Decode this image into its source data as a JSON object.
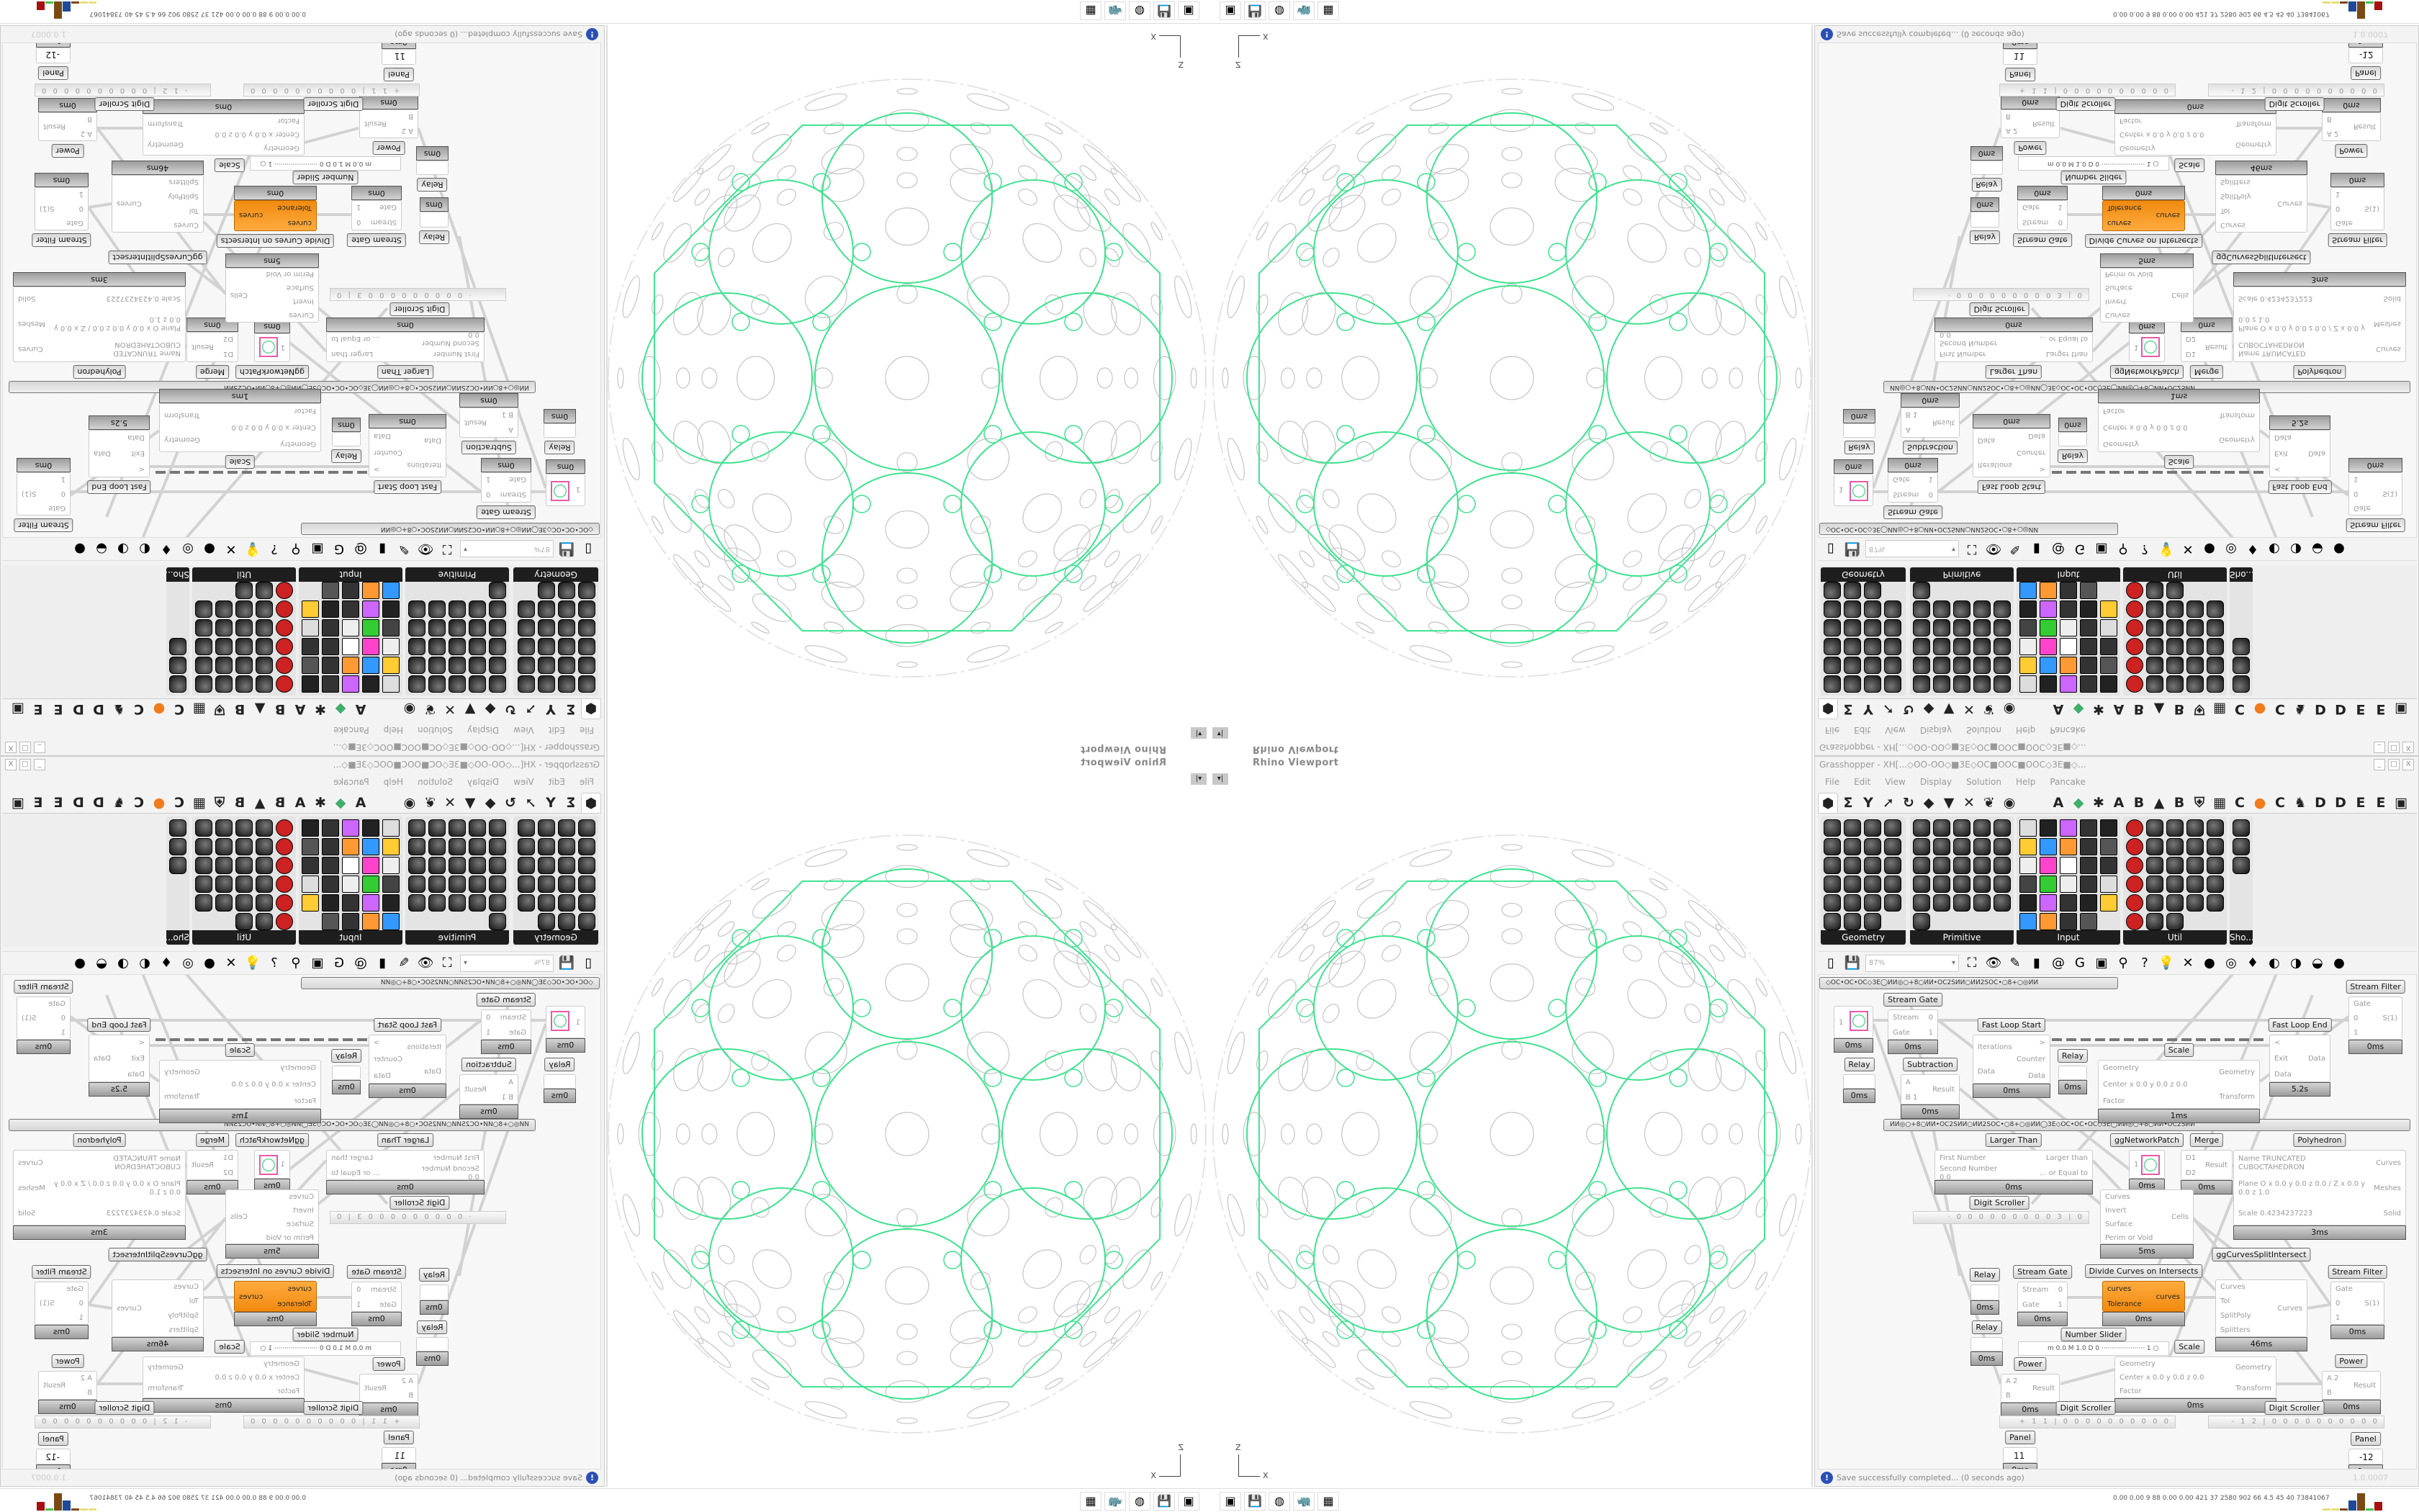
{
  "viewport": {
    "title": "Rhino Viewport",
    "dropdown_icon": "▾|",
    "axis_z": "Z",
    "axis_x": "X"
  },
  "grasshopper": {
    "title": "Grasshopper - XH[...◇OO-OO◇■3E◇OC■OOC■OOC◇3E■◇...",
    "window_buttons": [
      "_",
      "□",
      "X"
    ],
    "menu": [
      "File",
      "Edit",
      "View",
      "Display",
      "Solution",
      "Help",
      "Pancake"
    ],
    "tab_icons": [
      "⬢",
      "Σ",
      "Y",
      "➚",
      "↻",
      "◆",
      "▼",
      "✕",
      "❦",
      "◉"
    ],
    "tab_letters": [
      "A",
      "◆",
      "✱",
      "A",
      "B",
      "▲",
      "B",
      "⛨",
      "▦",
      "C",
      "●",
      "C",
      "♞",
      "D",
      "D",
      "E",
      "E",
      "▣"
    ],
    "panels": [
      {
        "label": "Geometry",
        "icon_count": 23
      },
      {
        "label": "Primitive",
        "icon_count": 26
      },
      {
        "label": "Input",
        "icon_count": 29
      },
      {
        "label": "Util",
        "icon_count": 28
      },
      {
        "label": "Sho...",
        "icon_count": 3
      }
    ],
    "zoom": "87%",
    "toolbar_icons": [
      "▯",
      "💾",
      "⛶",
      "👁",
      "✎",
      "▮",
      "@",
      "G",
      "▣",
      "⚲",
      "?",
      "💡",
      "✕",
      "●",
      "◎",
      "♦",
      "◐",
      "◑",
      "◒",
      "●"
    ],
    "status": "Save successfully completed... (0 seconds ago)",
    "version": "1.0.0007"
  },
  "canvas": {
    "group_bars": [
      "◇OC•OC•OC◇3E◯ИИ◎○+8○ИИ•OC2SИИ○ИИ2SOC•○8+○◎ИИ",
      "ИИ◎○+8○ИИ•OC2SИИ○ИИ2SOC•○8+○◎ИИ◯3E◇OC•OC•OC◇3E◯ИИ◎○+8○ИИ•OC2SИИ"
    ],
    "nodes": [
      {
        "id": "swatch1",
        "label": "",
        "inputs": [
          "1"
        ],
        "outputs": [],
        "time": "0ms"
      },
      {
        "id": "streamgate1",
        "label": "Stream Gate",
        "inputs": [
          "Stream",
          "Gate"
        ],
        "outputs": [
          "0",
          "1"
        ],
        "time": "0ms"
      },
      {
        "id": "relay1",
        "label": "Relay",
        "inputs": [],
        "outputs": [],
        "time": "0ms"
      },
      {
        "id": "subtraction",
        "label": "Subtraction",
        "inputs": [
          "A",
          "B 1"
        ],
        "outputs": [
          "Result"
        ],
        "time": "0ms"
      },
      {
        "id": "fastloopstart",
        "label": "Fast Loop Start",
        "inputs": [
          "Iterations",
          "Data"
        ],
        "outputs": [
          ">",
          "Counter",
          "Data"
        ],
        "time": "0ms"
      },
      {
        "id": "relay2",
        "label": "Relay",
        "inputs": [],
        "outputs": [],
        "time": "0ms"
      },
      {
        "id": "scale1",
        "label": "Scale",
        "inputs": [
          "Geometry",
          "Center x 0.0 y 0.0 z 0.0",
          "Factor"
        ],
        "outputs": [
          "Geometry",
          "Transform"
        ],
        "time": "1ms"
      },
      {
        "id": "fastloopend",
        "label": "Fast Loop End",
        "inputs": [
          "<",
          "Exit",
          "Data"
        ],
        "outputs": [
          "Data"
        ],
        "time": "5.2s"
      },
      {
        "id": "streamfilter1",
        "label": "Stream Filter",
        "inputs": [
          "Gate",
          "0",
          "1"
        ],
        "outputs": [
          "S(1)"
        ],
        "time": "0ms"
      },
      {
        "id": "largerthan",
        "label": "Larger Than",
        "inputs": [
          "First Number",
          "Second Number 0.0"
        ],
        "outputs": [
          "Larger than",
          "... or Equal to"
        ],
        "time": "0ms"
      },
      {
        "id": "swatch2",
        "label": "ggNetworkPatch",
        "inputs": [
          "1"
        ],
        "outputs": [],
        "time": "0ms"
      },
      {
        "id": "merge",
        "label": "Merge",
        "inputs": [
          "D1",
          "D2"
        ],
        "outputs": [
          "Result"
        ],
        "time": "0ms"
      },
      {
        "id": "cells",
        "label": "",
        "inputs": [
          "Curves",
          "Invert",
          "Surface",
          "Perim or Void"
        ],
        "outputs": [
          "Cells"
        ],
        "time": "5ms"
      },
      {
        "id": "polyhedron",
        "label": "Polyhedron",
        "inputs": [
          "Name TRUNCATED CUBOCTAHEDRON",
          "Plane  O x 0.0 y 0.0 z 0.0 / Z x 0.0 y 0.0 z 1.0",
          "Scale 0.4234237223"
        ],
        "outputs": [
          "Curves",
          "Meshes",
          "Solid"
        ],
        "time": "3ms"
      },
      {
        "id": "relay3",
        "label": "Relay",
        "inputs": [],
        "outputs": [],
        "time": "0ms"
      },
      {
        "id": "relay4",
        "label": "Relay",
        "inputs": [],
        "outputs": [],
        "time": "0ms"
      },
      {
        "id": "streamgate2",
        "label": "Stream Gate",
        "inputs": [
          "Stream",
          "Gate"
        ],
        "outputs": [
          "0",
          "1"
        ],
        "time": "0ms"
      },
      {
        "id": "divide",
        "label": "Divide Curves on Intersects",
        "inputs": [
          "curves",
          "Tolerance"
        ],
        "outputs": [
          "curves"
        ],
        "time": "0ms",
        "orange": true
      },
      {
        "id": "splitintersect",
        "label": "ggCurvesSplitIntersect",
        "inputs": [
          "Curves",
          "Tol",
          "SplitPoly",
          "Splitters"
        ],
        "outputs": [
          "Curves"
        ],
        "time": "46ms"
      },
      {
        "id": "streamfilter2",
        "label": "Stream Filter",
        "inputs": [
          "Gate",
          "0",
          "1"
        ],
        "outputs": [
          "S(1)"
        ],
        "time": "0ms"
      },
      {
        "id": "power1",
        "label": "Power",
        "inputs": [
          "A 2",
          "B"
        ],
        "outputs": [
          "Result"
        ],
        "time": "0ms"
      },
      {
        "id": "scale2",
        "label": "",
        "inputs": [
          "Geometry",
          "Center x 0.0 y 0.0 z 0.0",
          "Factor"
        ],
        "outputs": [
          "Geometry",
          "Transform"
        ],
        "time": "0ms"
      },
      {
        "id": "power2",
        "label": "Power",
        "inputs": [
          "A 2",
          "B"
        ],
        "outputs": [
          "Result"
        ],
        "time": "0ms"
      },
      {
        "id": "panel1",
        "label": "Panel",
        "inputs": [
          "11"
        ],
        "outputs": [],
        "time": "0ms"
      },
      {
        "id": "panel2",
        "label": "Panel",
        "inputs": [
          "-12"
        ],
        "outputs": [],
        "time": "0ms"
      }
    ],
    "extras": {
      "digit_scroller_label": "Digit Scroller",
      "scroller_top": "· 0 0 0 0 0 0 0 0 0 3 | 0",
      "scroller_left": "+ 1 1 | 0 0 0 0 0 0 0 0 0 0",
      "scroller_right": "- 1 2 | 0 0 0 0 0 0 0 0 0 0",
      "number_slider_label": "Number Slider",
      "number_slider": "m 0.0  M 1.0  D 0   ·····················  1 ○",
      "scale_label": "Scale"
    }
  },
  "taskbar": {
    "icons": [
      "▣",
      "💾",
      "◍",
      "🦏",
      "▦"
    ],
    "stats": "0.00 0.00  9   88  0.00 0.00 421  37  2580 902  66  4.5  45  40  73841067",
    "meter_colors": [
      "#e6e07a",
      "#e6e07a",
      "#7a4a12",
      "#1f4a9a",
      "#7a4a12",
      "#47c04a",
      "#a81010"
    ]
  },
  "colors": {
    "geometry_green": "#3fe28f",
    "geometry_gray": "#c4c4c4",
    "component_orange": "#f7931e",
    "wire": "#d2d2d2"
  }
}
